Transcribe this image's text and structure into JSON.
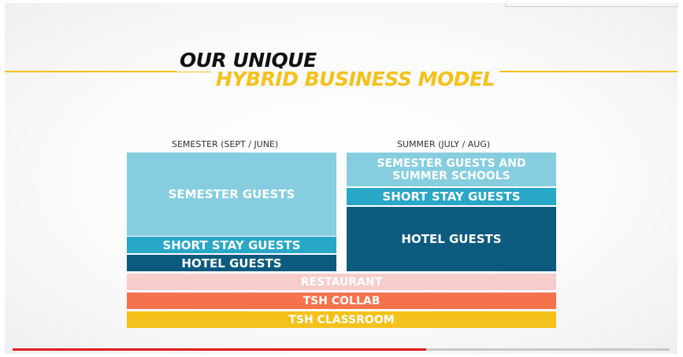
{
  "slide": {
    "title_line1": "OUR UNIQUE",
    "title_line2": "HYBRID BUSINESS MODEL"
  },
  "semester": {
    "label": "SEMESTER (SEPT / JUNE)",
    "blocks": [
      "SEMESTER GUESTS",
      "SHORT STAY GUESTS",
      "HOTEL GUESTS"
    ]
  },
  "summer": {
    "label": "SUMMER (JULY / AUG)",
    "blocks": [
      "SEMESTER GUESTS AND SUMMER SCHOOLS",
      "SHORT STAY GUESTS",
      "HOTEL GUESTS"
    ]
  },
  "bars": [
    "RESTAURANT",
    "TSH COLLAB",
    "TSH CLASSROOM"
  ],
  "colors": {
    "title_yellow": "#f5c11b",
    "light_blue": "#86cde0",
    "mid_blue": "#28a7c6",
    "dark_blue": "#0d5a7f",
    "restaurant": "#f6cdcb",
    "collab": "#f4734d",
    "classroom": "#f5c11b",
    "progress": "#e11b1b"
  },
  "video": {
    "progress_fraction": 0.63
  }
}
